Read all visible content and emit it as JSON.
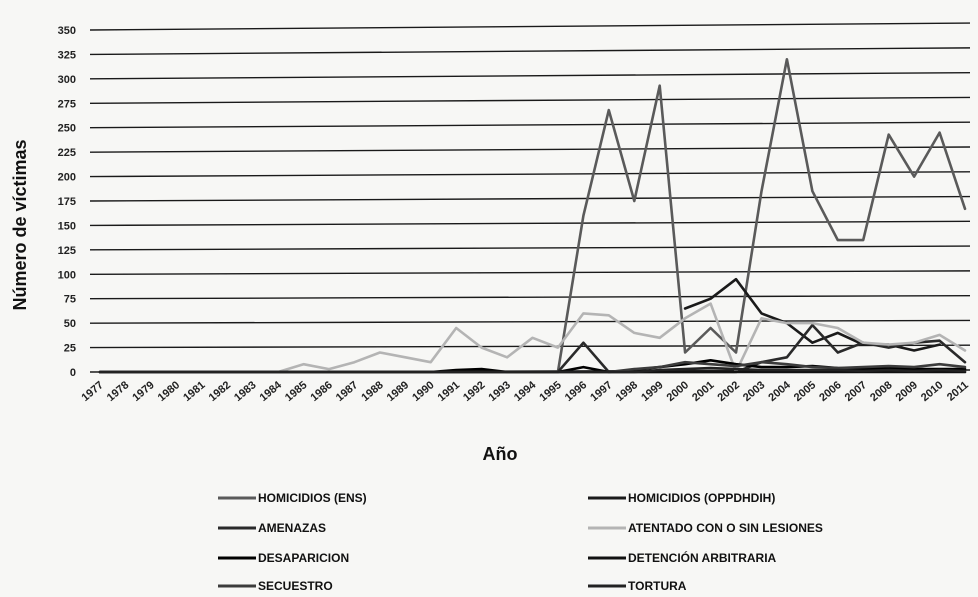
{
  "chart_data": {
    "type": "line",
    "title": "",
    "xlabel": "Año",
    "ylabel": "Número de víctimas",
    "ylim": [
      0,
      350
    ],
    "y_ticks": [
      0,
      25,
      50,
      75,
      100,
      125,
      150,
      175,
      200,
      225,
      250,
      275,
      300,
      325,
      350
    ],
    "grid": true,
    "legend_position": "bottom",
    "categories": [
      "1977",
      "1978",
      "1979",
      "1980",
      "1981",
      "1982",
      "1983",
      "1984",
      "1985",
      "1986",
      "1987",
      "1988",
      "1989",
      "1990",
      "1991",
      "1992",
      "1993",
      "1994",
      "1995",
      "1996",
      "1997",
      "1998",
      "1999",
      "2000",
      "2001",
      "2002",
      "2003",
      "2004",
      "2005",
      "2006",
      "2007",
      "2008",
      "2009",
      "2010",
      "2011"
    ],
    "series": [
      {
        "name": "HOMICIDIOS (ENS)",
        "color": "#5a5a5a",
        "values": [
          0,
          0,
          0,
          0,
          0,
          0,
          0,
          0,
          0,
          0,
          0,
          0,
          0,
          0,
          0,
          0,
          0,
          0,
          0,
          160,
          268,
          175,
          293,
          20,
          45,
          20,
          185,
          320,
          185,
          135,
          135,
          243,
          200,
          245,
          167
        ]
      },
      {
        "name": "HOMICIDIOS (OPPDHDIH)",
        "color": "#1a1a1a",
        "values": [
          null,
          null,
          null,
          null,
          null,
          null,
          null,
          null,
          null,
          null,
          null,
          null,
          null,
          null,
          null,
          null,
          null,
          null,
          null,
          null,
          null,
          null,
          null,
          65,
          75,
          95,
          60,
          50,
          30,
          40,
          28,
          28,
          22,
          28,
          null
        ]
      },
      {
        "name": "AMENAZAS",
        "color": "#2a2a2a",
        "values": [
          0,
          0,
          0,
          0,
          0,
          0,
          0,
          0,
          0,
          0,
          0,
          0,
          0,
          0,
          0,
          0,
          0,
          0,
          0,
          30,
          0,
          0,
          0,
          0,
          0,
          0,
          10,
          15,
          48,
          20,
          30,
          25,
          30,
          32,
          10
        ]
      },
      {
        "name": "ATENTADO CON O SIN LESIONES",
        "color": "#b4b4b4",
        "values": [
          0,
          0,
          0,
          0,
          0,
          0,
          0,
          0,
          8,
          3,
          10,
          20,
          15,
          10,
          45,
          25,
          15,
          35,
          25,
          60,
          58,
          40,
          35,
          55,
          70,
          0,
          55,
          50,
          50,
          45,
          30,
          28,
          30,
          38,
          22
        ]
      },
      {
        "name": "DESAPARICION",
        "color": "#000000",
        "values": [
          0,
          0,
          0,
          0,
          0,
          0,
          0,
          0,
          0,
          0,
          0,
          0,
          0,
          0,
          2,
          3,
          0,
          0,
          0,
          5,
          0,
          2,
          5,
          8,
          12,
          8,
          5,
          5,
          6,
          4,
          3,
          4,
          3,
          3,
          3
        ]
      },
      {
        "name": "DETENCIÓN ARBITRARIA",
        "color": "#111111",
        "values": [
          0,
          0,
          0,
          0,
          0,
          0,
          0,
          0,
          0,
          0,
          0,
          0,
          0,
          0,
          0,
          0,
          0,
          0,
          0,
          0,
          0,
          0,
          0,
          0,
          0,
          0,
          0,
          0,
          0,
          0,
          0,
          0,
          0,
          0,
          0
        ]
      },
      {
        "name": "SECUESTRO",
        "color": "#3c3c3c",
        "values": [
          0,
          0,
          0,
          0,
          0,
          0,
          0,
          0,
          0,
          0,
          0,
          0,
          0,
          0,
          0,
          0,
          0,
          0,
          0,
          0,
          0,
          3,
          5,
          10,
          8,
          6,
          10,
          8,
          5,
          4,
          5,
          6,
          5,
          8,
          5
        ]
      },
      {
        "name": "TORTURA",
        "color": "#222222",
        "values": [
          0,
          0,
          0,
          0,
          0,
          0,
          0,
          0,
          0,
          0,
          0,
          0,
          0,
          0,
          0,
          0,
          0,
          0,
          0,
          0,
          0,
          0,
          2,
          3,
          4,
          3,
          2,
          2,
          2,
          2,
          1,
          2,
          1,
          2,
          1
        ]
      }
    ]
  }
}
